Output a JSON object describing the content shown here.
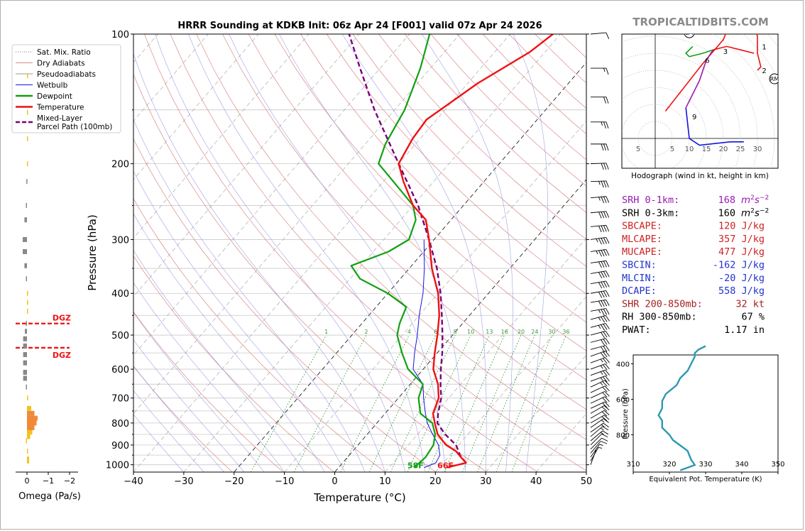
{
  "title": "HRRR Sounding at KDKB Init: 06z Apr 24 [F001] valid 07z Apr 24 2026",
  "brand": "TROPICALTIDBITS.COM",
  "colors": {
    "temp": "#ee1111",
    "dew": "#11a011",
    "wetbulb": "#1414e0",
    "parcel": "#7a007a",
    "dry": "#d98a8a",
    "pseudo": "#9a9a9a",
    "mix": "#208a20",
    "iso": "#111111"
  },
  "legend": [
    {
      "label": "Sat. Mix. Ratio",
      "style": "mix"
    },
    {
      "label": "Dry Adiabats",
      "style": "dry"
    },
    {
      "label": "Pseudoadiabats",
      "style": "pseudo"
    },
    {
      "label": "Wetbulb",
      "style": "wetbulb"
    },
    {
      "label": "Dewpoint",
      "style": "dew"
    },
    {
      "label": "Temperature",
      "style": "temp"
    },
    {
      "label": "Mixed-Layer\nParcel Path (100mb)",
      "style": "parcel"
    }
  ],
  "chart_data": [
    {
      "type": "line",
      "name": "skewt",
      "xlabel": "Temperature (°C)",
      "ylabel": "Pressure (hPa)",
      "xlim": [
        -40,
        50
      ],
      "ylim": [
        1040,
        100
      ],
      "xticks": [
        -40,
        -30,
        -20,
        -10,
        0,
        10,
        20,
        30,
        40,
        50
      ],
      "xtick_labels": [
        "−40",
        "−30",
        "−20",
        "−10",
        "0",
        "10",
        "20",
        "30",
        "40",
        "50"
      ],
      "yticks": [
        100,
        200,
        300,
        400,
        500,
        600,
        700,
        800,
        900,
        1000
      ],
      "mix_ratio_labels": [
        "1",
        "2",
        "4",
        "6",
        "8",
        "10",
        "13",
        "16",
        "20",
        "24",
        "30",
        "36"
      ],
      "temperature": [
        [
          1015,
          21.5
        ],
        [
          990,
          24.5
        ],
        [
          960,
          22.5
        ],
        [
          930,
          20.5
        ],
        [
          900,
          17.5
        ],
        [
          850,
          14
        ],
        [
          800,
          11.5
        ],
        [
          760,
          9.5
        ],
        [
          700,
          8
        ],
        [
          650,
          5.5
        ],
        [
          600,
          2
        ],
        [
          550,
          -0.5
        ],
        [
          500,
          -3
        ],
        [
          450,
          -6
        ],
        [
          400,
          -10
        ],
        [
          350,
          -15.5
        ],
        [
          300,
          -21
        ],
        [
          270,
          -25
        ],
        [
          250,
          -30
        ],
        [
          220,
          -36
        ],
        [
          200,
          -40
        ],
        [
          175,
          -41.5
        ],
        [
          158,
          -42
        ],
        [
          130,
          -38
        ],
        [
          110,
          -33
        ],
        [
          100,
          -31.5
        ]
      ],
      "dewpoint": [
        [
          1015,
          15
        ],
        [
          960,
          15.5
        ],
        [
          900,
          15
        ],
        [
          850,
          13.5
        ],
        [
          800,
          11
        ],
        [
          760,
          7
        ],
        [
          700,
          4
        ],
        [
          650,
          2.5
        ],
        [
          600,
          -3
        ],
        [
          550,
          -7
        ],
        [
          500,
          -11
        ],
        [
          470,
          -12.5
        ],
        [
          430,
          -14
        ],
        [
          400,
          -20
        ],
        [
          370,
          -28
        ],
        [
          345,
          -32
        ],
        [
          320,
          -27
        ],
        [
          300,
          -25
        ],
        [
          270,
          -27
        ],
        [
          250,
          -30
        ],
        [
          220,
          -38
        ],
        [
          200,
          -44
        ],
        [
          180,
          -46
        ],
        [
          150,
          -48
        ],
        [
          120,
          -52
        ],
        [
          100,
          -56
        ]
      ],
      "wetbulb": [
        [
          1015,
          17
        ],
        [
          990,
          18.5
        ],
        [
          950,
          18
        ],
        [
          900,
          16
        ],
        [
          850,
          13
        ],
        [
          800,
          10
        ],
        [
          760,
          8
        ],
        [
          700,
          5
        ],
        [
          650,
          2.5
        ],
        [
          600,
          -2
        ],
        [
          550,
          -4.5
        ],
        [
          500,
          -7
        ],
        [
          450,
          -10
        ],
        [
          400,
          -13
        ],
        [
          350,
          -17
        ],
        [
          300,
          -22
        ]
      ],
      "parcel": [
        [
          990,
          24.5
        ],
        [
          950,
          22
        ],
        [
          900,
          19.5
        ],
        [
          850,
          15.5
        ],
        [
          800,
          12
        ],
        [
          760,
          10.5
        ],
        [
          700,
          8.5
        ],
        [
          650,
          6
        ],
        [
          600,
          3.5
        ],
        [
          550,
          1
        ],
        [
          500,
          -2
        ],
        [
          450,
          -5.5
        ],
        [
          400,
          -9.5
        ],
        [
          350,
          -14.5
        ],
        [
          300,
          -21
        ],
        [
          250,
          -29
        ],
        [
          200,
          -40
        ],
        [
          150,
          -54
        ],
        [
          120,
          -64
        ],
        [
          100,
          -72
        ]
      ],
      "surface_labels": {
        "dewpoint": "58F",
        "temperature": "66F"
      },
      "dgz_label": "DGZ",
      "dgz": [
        470,
        535
      ]
    },
    {
      "type": "bar",
      "name": "omega",
      "xlabel": "Omega (Pa/s)",
      "xticks": [
        0,
        -1,
        -2
      ],
      "xtick_labels": [
        "0",
        "−1",
        "−2"
      ],
      "values": [
        [
          980,
          -0.1,
          "#f2c21b"
        ],
        [
          970,
          -0.1,
          "#f2c21b"
        ],
        [
          930,
          -0.05,
          "#f2c21b"
        ],
        [
          880,
          0.05,
          "#f2c21b"
        ],
        [
          860,
          -0.15,
          "#f2c21b"
        ],
        [
          840,
          -0.25,
          "#f2c21b"
        ],
        [
          820,
          -0.35,
          "#f08a3a"
        ],
        [
          800,
          -0.45,
          "#f08a3a"
        ],
        [
          780,
          -0.5,
          "#f08a3a"
        ],
        [
          760,
          -0.35,
          "#f08a3a"
        ],
        [
          740,
          -0.2,
          "#f2c21b"
        ],
        [
          700,
          -0.05,
          "#f2c21b"
        ],
        [
          660,
          0.05,
          "#888888"
        ],
        [
          630,
          0.18,
          "#888888"
        ],
        [
          610,
          0.18,
          "#888888"
        ],
        [
          580,
          0.18,
          "#888888"
        ],
        [
          555,
          0.18,
          "#888888"
        ],
        [
          530,
          0.18,
          "#888888"
        ],
        [
          510,
          0.18,
          "#888888"
        ],
        [
          490,
          0.1,
          "#888888"
        ],
        [
          470,
          0.05,
          "#888888"
        ],
        [
          440,
          -0.05,
          "#f2c21b"
        ],
        [
          420,
          -0.05,
          "#f2c21b"
        ],
        [
          400,
          -0.05,
          "#f2c21b"
        ],
        [
          370,
          0.05,
          "#888888"
        ],
        [
          345,
          0.12,
          "#888888"
        ],
        [
          320,
          0.2,
          "#888888"
        ],
        [
          300,
          0.2,
          "#888888"
        ],
        [
          270,
          0.12,
          "#888888"
        ],
        [
          250,
          0.05,
          "#888888"
        ],
        [
          220,
          0.03,
          "#888888"
        ],
        [
          200,
          -0.03,
          "#f2c21b"
        ],
        [
          175,
          -0.02,
          "#f2c21b"
        ],
        [
          152,
          -0.02,
          "#f2c21b"
        ],
        [
          125,
          -0.02,
          "#f2c21b"
        ]
      ]
    },
    {
      "type": "line",
      "name": "hodograph",
      "xlabel": "Hodograph (wind in kt, height in km)",
      "ring_labels": [
        "5",
        "5",
        "10",
        "15",
        "20",
        "25",
        "30"
      ],
      "labels_1_2_3_6_9": [
        "1",
        "2",
        "3",
        "6",
        "9"
      ],
      "storm_motion": [
        "LM",
        "RM"
      ],
      "segments": [
        {
          "color": "#ee1111",
          "points": [
            [
              3,
              8
            ],
            [
              14,
              22
            ],
            [
              20,
              29
            ],
            [
              22,
              34
            ],
            [
              26,
              34
            ],
            [
              29,
              33
            ],
            [
              30,
              30
            ],
            [
              30,
              25
            ],
            [
              31,
              21
            ],
            [
              30,
              20
            ]
          ]
        },
        {
          "color": "#ee1111",
          "points": [
            [
              29,
              25
            ],
            [
              25,
              26
            ],
            [
              21,
              27
            ],
            [
              17,
              26
            ]
          ]
        },
        {
          "color": "#11a011",
          "points": [
            [
              17,
              26
            ],
            [
              14,
              25
            ],
            [
              10,
              24
            ],
            [
              9,
              25
            ],
            [
              11,
              27
            ]
          ]
        },
        {
          "color": "#9a1ab0",
          "points": [
            [
              17,
              26
            ],
            [
              15,
              23
            ],
            [
              13,
              17
            ],
            [
              11,
              13
            ],
            [
              9,
              9
            ]
          ]
        },
        {
          "color": "#1414e0",
          "points": [
            [
              9,
              9
            ],
            [
              10,
              0
            ],
            [
              13,
              -2
            ],
            [
              22,
              -1
            ],
            [
              26,
              -1
            ]
          ]
        }
      ]
    },
    {
      "type": "line",
      "name": "theta-e",
      "xlabel": "Equivalent Pot. Temperature (K)",
      "ylabel": "Pressure (hPa)",
      "xlim": [
        310,
        350
      ],
      "ylim": [
        350,
        1010
      ],
      "xticks": [
        310,
        320,
        330,
        340,
        350
      ],
      "yticks": [
        400,
        600,
        800
      ],
      "values": [
        [
          1000,
          323
        ],
        [
          970,
          327
        ],
        [
          940,
          326
        ],
        [
          890,
          325
        ],
        [
          860,
          323
        ],
        [
          830,
          321
        ],
        [
          800,
          320
        ],
        [
          760,
          318
        ],
        [
          720,
          318
        ],
        [
          690,
          317
        ],
        [
          650,
          318
        ],
        [
          610,
          318
        ],
        [
          570,
          319
        ],
        [
          520,
          322
        ],
        [
          480,
          323
        ],
        [
          440,
          325
        ],
        [
          400,
          326
        ],
        [
          360,
          327
        ],
        [
          340,
          327
        ],
        [
          320,
          328
        ],
        [
          300,
          330
        ]
      ]
    }
  ],
  "indices": [
    {
      "label": "SRH 0-1km:",
      "value": "168",
      "unit_pre": "m",
      "unit_sup": "2",
      "unit_post": "s",
      "unit_sup2": "−2",
      "color": "#9a1ab0"
    },
    {
      "label": "SRH 0-3km:",
      "value": "160",
      "unit_pre": "m",
      "unit_sup": "2",
      "unit_post": "s",
      "unit_sup2": "−2",
      "color": "#000000"
    },
    {
      "label": "SBCAPE:",
      "value": "120 J/kg",
      "color": "#cc2222"
    },
    {
      "label": "MLCAPE:",
      "value": "357 J/kg",
      "color": "#cc2222"
    },
    {
      "label": "MUCAPE:",
      "value": "477 J/kg",
      "color": "#cc2222"
    },
    {
      "label": "SBCIN:",
      "value": "-162 J/kg",
      "color": "#2233cc"
    },
    {
      "label": "MLCIN:",
      "value": "-20 J/kg",
      "color": "#2233cc"
    },
    {
      "label": "DCAPE:",
      "value": "558 J/kg",
      "color": "#2233cc"
    },
    {
      "label": "SHR 200-850mb:",
      "value": "32 kt",
      "color": "#a52020"
    },
    {
      "label": "RH 300-850mb:",
      "value": "67 %",
      "color": "#000000"
    },
    {
      "label": "PWAT:",
      "value": "1.17 in",
      "color": "#000000"
    }
  ],
  "wind_barbs": [
    [
      1000,
      4,
      200
    ],
    [
      980,
      6,
      210
    ],
    [
      960,
      8,
      215
    ],
    [
      940,
      10,
      220
    ],
    [
      920,
      12,
      225
    ],
    [
      900,
      14,
      225
    ],
    [
      880,
      15,
      230
    ],
    [
      860,
      16,
      230
    ],
    [
      840,
      17,
      235
    ],
    [
      820,
      18,
      235
    ],
    [
      800,
      20,
      240
    ],
    [
      780,
      20,
      240
    ],
    [
      760,
      21,
      240
    ],
    [
      740,
      22,
      245
    ],
    [
      720,
      22,
      245
    ],
    [
      700,
      23,
      245
    ],
    [
      680,
      24,
      245
    ],
    [
      660,
      25,
      245
    ],
    [
      640,
      25,
      250
    ],
    [
      620,
      26,
      250
    ],
    [
      600,
      27,
      250
    ],
    [
      580,
      28,
      250
    ],
    [
      560,
      30,
      250
    ],
    [
      540,
      30,
      255
    ],
    [
      520,
      32,
      255
    ],
    [
      500,
      34,
      255
    ],
    [
      480,
      35,
      255
    ],
    [
      460,
      36,
      255
    ],
    [
      440,
      38,
      260
    ],
    [
      420,
      40,
      260
    ],
    [
      400,
      40,
      260
    ],
    [
      380,
      42,
      260
    ],
    [
      360,
      42,
      260
    ],
    [
      340,
      44,
      262
    ],
    [
      320,
      45,
      262
    ],
    [
      300,
      45,
      262
    ],
    [
      280,
      44,
      265
    ],
    [
      260,
      40,
      265
    ],
    [
      240,
      38,
      265
    ],
    [
      220,
      36,
      268
    ],
    [
      200,
      34,
      268
    ],
    [
      180,
      30,
      270
    ],
    [
      160,
      26,
      270
    ],
    [
      140,
      22,
      270
    ],
    [
      120,
      18,
      270
    ],
    [
      100,
      14,
      265
    ]
  ]
}
